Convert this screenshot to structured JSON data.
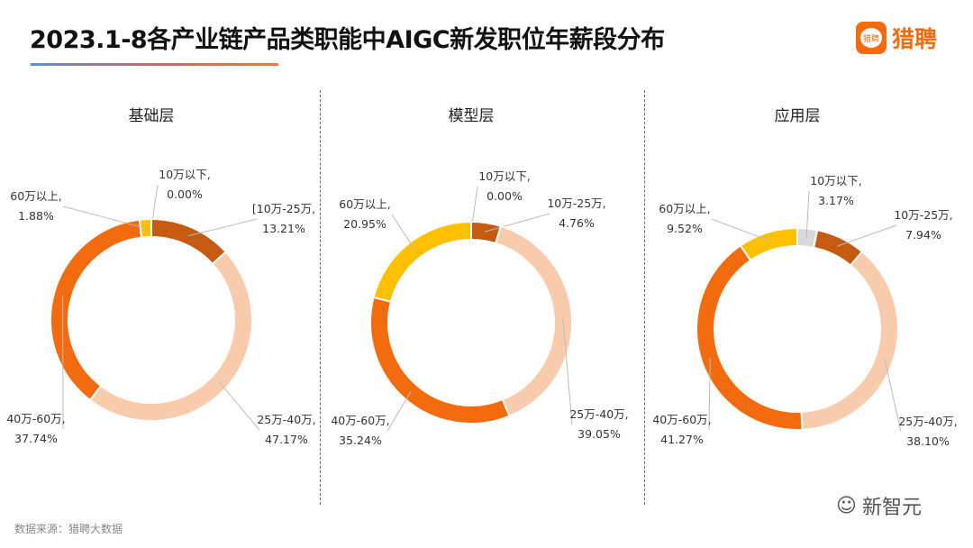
{
  "title": "2023.1-8各产业链产品类职能中AIGC新发职位年薪段分布",
  "logo": {
    "icon_text": "猎聘",
    "text": "猎聘"
  },
  "source": "数据来源：猎聘大数据",
  "watermark": "新智元",
  "colors": {
    "10万以下": "#d9d9d9",
    "10万-25万": "#c55a11",
    "25万-40万": "#f8cbad",
    "40万-60万": "#f26b0f",
    "60万以上": "#ffc000"
  },
  "chart_data": [
    {
      "type": "pie",
      "donut": true,
      "title": "基础层",
      "slices": [
        {
          "label": "10万以下,",
          "value": 0.0,
          "text": "0.00%"
        },
        {
          "label": "[10万-25万,",
          "value": 13.21,
          "text": "13.21%"
        },
        {
          "label": "25万-40万,",
          "value": 47.17,
          "text": "47.17%"
        },
        {
          "label": "40万-60万,",
          "value": 37.74,
          "text": "37.74%"
        },
        {
          "label": "60万以上,",
          "value": 1.88,
          "text": "1.88%"
        }
      ]
    },
    {
      "type": "pie",
      "donut": true,
      "title": "模型层",
      "slices": [
        {
          "label": "10万以下,",
          "value": 0.0,
          "text": "0.00%"
        },
        {
          "label": "10万-25万,",
          "value": 4.76,
          "text": "4.76%"
        },
        {
          "label": "25万-40万,",
          "value": 39.05,
          "text": "39.05%"
        },
        {
          "label": "40万-60万,",
          "value": 35.24,
          "text": "35.24%"
        },
        {
          "label": "60万以上,",
          "value": 20.95,
          "text": "20.95%"
        }
      ]
    },
    {
      "type": "pie",
      "donut": true,
      "title": "应用层",
      "slices": [
        {
          "label": "10万以下,",
          "value": 3.17,
          "text": "3.17%"
        },
        {
          "label": "10万-25万,",
          "value": 7.94,
          "text": "7.94%"
        },
        {
          "label": "25万-40万,",
          "value": 38.1,
          "text": "38.10%"
        },
        {
          "label": "40万-60万,",
          "value": 41.27,
          "text": "41.27%"
        },
        {
          "label": "60万以上,",
          "value": 9.52,
          "text": "9.52%"
        }
      ]
    }
  ]
}
